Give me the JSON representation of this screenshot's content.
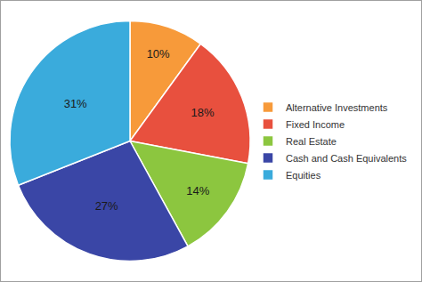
{
  "chart_data": {
    "type": "pie",
    "categories": [
      "Alternative Investments",
      "Fixed Income",
      "Real Estate",
      "Cash and Cash Equivalents",
      "Equities"
    ],
    "values": [
      10,
      18,
      14,
      27,
      31
    ],
    "value_labels": [
      "10%",
      "18%",
      "14%",
      "27%",
      "31%"
    ],
    "colors": [
      "#f79a3a",
      "#e8503e",
      "#8cc63f",
      "#3a46a6",
      "#3aabdc"
    ],
    "data_labels": true,
    "legend": "right"
  }
}
